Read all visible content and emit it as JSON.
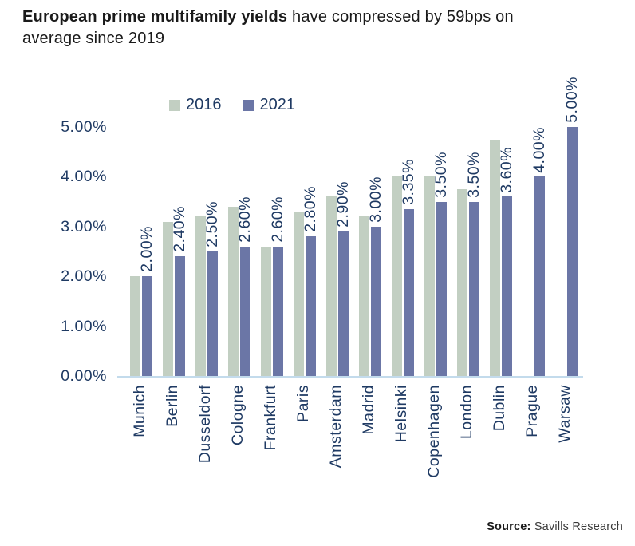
{
  "title": {
    "bold": "European prime multifamily yields",
    "rest": " have compressed by 59bps on",
    "line2": "average since 2019"
  },
  "source": {
    "prefix": "Source:",
    "text": "Savills Research"
  },
  "colors": {
    "series_2016": "#c2cfc2",
    "series_2021": "#6b76a6",
    "axis_text": "#1f3a63",
    "baseline": "#c3dbec",
    "title_text": "#1a1a1a"
  },
  "chart_data": {
    "type": "bar",
    "title": "European prime multifamily yields have compressed by 59bps on average since 2019",
    "categories": [
      "Munich",
      "Berlin",
      "Dusseldorf",
      "Cologne",
      "Frankfurt",
      "Paris",
      "Amsterdam",
      "Madrid",
      "Helsinki",
      "Copenhagen",
      "London",
      "Dublin",
      "Prague",
      "Warsaw"
    ],
    "series": [
      {
        "name": "2016",
        "color": "#c2cfc2",
        "values": [
          2.0,
          3.1,
          3.2,
          3.4,
          2.6,
          3.3,
          3.6,
          3.2,
          4.0,
          4.0,
          3.75,
          4.75,
          null,
          null
        ]
      },
      {
        "name": "2021",
        "color": "#6b76a6",
        "values": [
          2.0,
          2.4,
          2.5,
          2.6,
          2.6,
          2.8,
          2.9,
          3.0,
          3.35,
          3.5,
          3.5,
          3.6,
          4.0,
          5.0
        ]
      }
    ],
    "data_labels": [
      "2.00%",
      "2.40%",
      "2.50%",
      "2.60%",
      "2.60%",
      "2.80%",
      "2.90%",
      "3.00%",
      "3.35%",
      "3.50%",
      "3.50%",
      "3.60%",
      "4.00%",
      "5.00%"
    ],
    "data_label_series": "2021",
    "yticks": [
      "5.00%",
      "4.00%",
      "3.00%",
      "2.00%",
      "1.00%",
      "0.00%"
    ],
    "ylim": [
      0,
      5
    ],
    "xlabel": "",
    "ylabel": "",
    "grid": false,
    "legend_position": "top"
  }
}
